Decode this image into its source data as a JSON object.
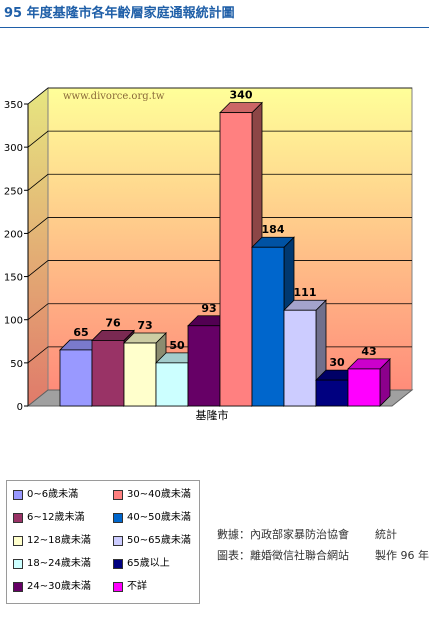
{
  "header": {
    "title": "95 年度基隆市各年齡層家庭通報統計圖"
  },
  "chart_data": {
    "type": "bar",
    "categories": [
      "基隆市"
    ],
    "ylim": [
      0,
      350
    ],
    "yticks": [
      0,
      50,
      100,
      150,
      200,
      250,
      300,
      350
    ],
    "grid": true,
    "legend_position": "bottom-left",
    "watermark": "www.divorce.org.tw",
    "series": [
      {
        "name": "0~6歲未滿",
        "values": [
          65
        ],
        "color": "#9999ff"
      },
      {
        "name": "6~12歲未滿",
        "values": [
          76
        ],
        "color": "#993366"
      },
      {
        "name": "12~18歲未滿",
        "values": [
          73
        ],
        "color": "#ffffcc"
      },
      {
        "name": "18~24歲未滿",
        "values": [
          50
        ],
        "color": "#ccffff"
      },
      {
        "name": "24~30歲未滿",
        "values": [
          93
        ],
        "color": "#660066"
      },
      {
        "name": "30~40歲未滿",
        "values": [
          340
        ],
        "color": "#ff8080"
      },
      {
        "name": "40~50歲未滿",
        "values": [
          184
        ],
        "color": "#0066cc"
      },
      {
        "name": "50~65歲未滿",
        "values": [
          111
        ],
        "color": "#ccccff"
      },
      {
        "name": "65歲以上",
        "values": [
          30
        ],
        "color": "#000080"
      },
      {
        "name": "不詳",
        "values": [
          43
        ],
        "color": "#ff00ff"
      }
    ]
  },
  "source": {
    "line1_label": "數據：內政部家暴防治協會",
    "line1_suffix": "統計",
    "line2_label": "圖表：離婚徵信社聯合網站",
    "line2_suffix": "製作 96 年"
  }
}
